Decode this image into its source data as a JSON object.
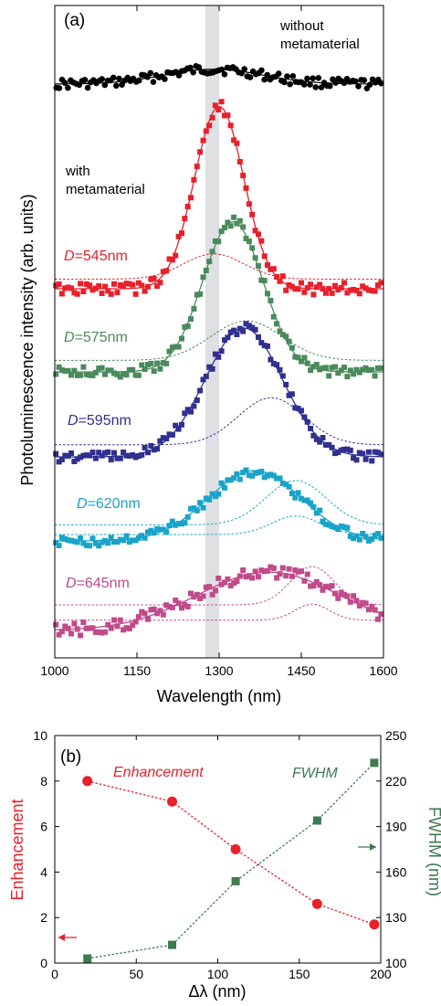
{
  "chart_data": [
    {
      "panel": "(a)",
      "type": "scatter",
      "xlabel": "Wavelength (nm)",
      "ylabel": "Photoluminescence intensity (arb. units)",
      "xlim": [
        1000,
        1600
      ],
      "xticks": [
        "1000",
        "1150",
        "1300",
        "1450",
        "1600"
      ],
      "highlight_band": [
        1275,
        1300
      ],
      "reference": {
        "label_line1": "without",
        "label_line2": "metamaterial",
        "color": "#000000",
        "center": 1290,
        "width": 90,
        "base": 0.12,
        "peak": 0.09,
        "noise": 0.025
      },
      "group_label_line1": "with",
      "group_label_line2": "metamaterial",
      "series": [
        {
          "d_label": "D",
          "d_value": "=545nm",
          "color": "#e8202a",
          "fit_center": 1300,
          "fit_width": 45,
          "fit_height": 1.0,
          "dot_center": 1290,
          "dot_width": 55,
          "dot_height": 0.22,
          "dot_offset": 0.05,
          "noise": 0.03
        },
        {
          "d_label": "D",
          "d_value": "=575nm",
          "color": "#4a8a5c",
          "fit_center": 1325,
          "fit_width": 55,
          "fit_height": 0.96,
          "dot_center": 1350,
          "dot_width": 65,
          "dot_height": 0.4,
          "dot_offset": 0.07,
          "noise": 0.03
        },
        {
          "d_label": "D",
          "d_value": "=595nm",
          "color": "#303090",
          "fit_center": 1345,
          "fit_width": 70,
          "fit_height": 0.9,
          "dot_center": 1395,
          "dot_width": 60,
          "dot_height": 0.52,
          "dot_offset": 0.08,
          "noise": 0.03
        },
        {
          "d_label": "D",
          "d_value": "=620nm",
          "color": "#1aa3c8",
          "fit_center": 1365,
          "fit_width": 85,
          "fit_height": 0.6,
          "dot_center": 1440,
          "dot_width": 55,
          "dot_height": 0.6,
          "dot_offset": 0.13,
          "noise": 0.04
        },
        {
          "d_label": "D",
          "d_value": "=645nm",
          "color": "#c04a8a",
          "fit_center": 1390,
          "fit_width": 130,
          "fit_height": 0.48,
          "dot_center": 1470,
          "dot_width": 40,
          "dot_height": 0.5,
          "dot_offset": 0.2,
          "noise": 0.05
        }
      ]
    },
    {
      "panel": "(b)",
      "type": "line",
      "xlabel": "Δλ (nm)",
      "ylabel_left": "Enhancement",
      "ylabel_right": "FWHM (nm)",
      "xlim": [
        0,
        200
      ],
      "ylim_left": [
        0,
        10
      ],
      "ylim_right": [
        100,
        250
      ],
      "xticks": [
        "0",
        "50",
        "100",
        "150",
        "200"
      ],
      "yticks_left": [
        "0",
        "2",
        "4",
        "6",
        "8",
        "10"
      ],
      "yticks_right": [
        "100",
        "130",
        "160",
        "190",
        "220",
        "250"
      ],
      "series": [
        {
          "name": "Enhancement",
          "axis": "left",
          "color": "#e8202a",
          "x": [
            20,
            72,
            111,
            161,
            196
          ],
          "values": [
            8.0,
            7.1,
            5.0,
            2.6,
            1.7
          ]
        },
        {
          "name": "FWHM",
          "axis": "right",
          "color": "#3e7a50",
          "x": [
            20,
            72,
            111,
            161,
            196
          ],
          "values": [
            103,
            112,
            154,
            194,
            232
          ]
        }
      ]
    }
  ]
}
